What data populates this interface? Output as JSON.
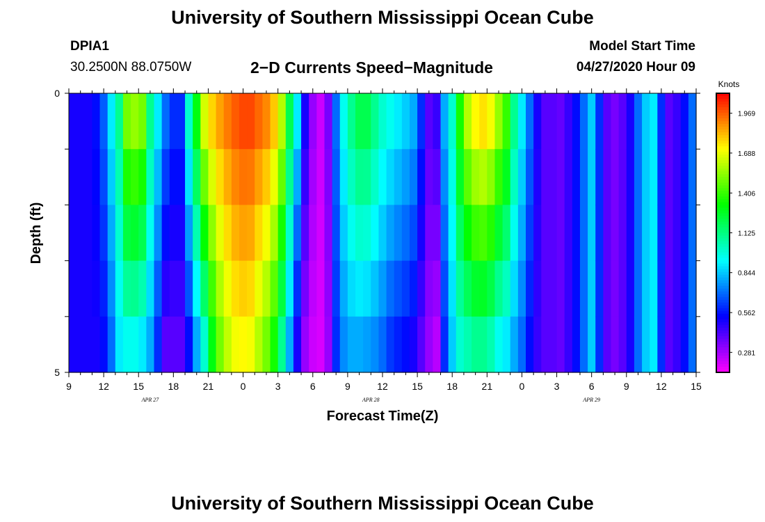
{
  "header": {
    "title": "University of Southern Mississippi Ocean Cube",
    "station_id": "DPIA1",
    "coordinates": "30.2500N 88.0750W",
    "subtitle": "2−D Currents Speed−Magnitude",
    "model_start_label": "Model Start Time",
    "model_start_value": "04/27/2020 Hour 09"
  },
  "footer": {
    "title": "University of Southern Mississippi Ocean Cube"
  },
  "chart_data": {
    "type": "heatmap",
    "title": "2−D Currents Speed−Magnitude",
    "xlabel": "Forecast Time(Z)",
    "ylabel": "Depth (ft)",
    "x_tick_labels": [
      "9",
      "12",
      "15",
      "18",
      "21",
      "0",
      "3",
      "6",
      "9",
      "12",
      "15",
      "18",
      "21",
      "0",
      "3",
      "6",
      "9",
      "12",
      "15"
    ],
    "date_labels": [
      {
        "label": "APR 27",
        "hour_index": 7
      },
      {
        "label": "APR 28",
        "hour_index": 26
      },
      {
        "label": "APR 29",
        "hour_index": 45
      }
    ],
    "y_tick_labels": [
      "0",
      "5"
    ],
    "ylim": [
      0,
      5
    ],
    "x_hours": 54,
    "depth_layers": 5,
    "surface_speeds": [
      0.5,
      0.5,
      0.5,
      0.55,
      0.68,
      0.9,
      1.1,
      1.5,
      1.55,
      1.5,
      1.1,
      0.9,
      0.7,
      0.6,
      0.6,
      1.0,
      1.3,
      1.65,
      1.78,
      1.86,
      1.92,
      1.97,
      2.0,
      2.0,
      1.95,
      1.9,
      1.8,
      1.6,
      1.2,
      0.9,
      0.5,
      0.3,
      0.22,
      0.35,
      0.7,
      0.95,
      1.1,
      1.2,
      1.2,
      1.1,
      1.0,
      0.95,
      0.9,
      0.85,
      0.8,
      0.6,
      0.4,
      0.45,
      0.8,
      1.0,
      1.35,
      1.6,
      1.72,
      1.76,
      1.7,
      1.55,
      1.4,
      1.1,
      0.9,
      0.7,
      0.5,
      0.4,
      0.4,
      0.38,
      0.45,
      0.55,
      0.7,
      0.85,
      0.6,
      0.4,
      0.35,
      0.4,
      0.5,
      0.7,
      0.85,
      0.9,
      0.6,
      0.4,
      0.45,
      0.55,
      0.7
    ],
    "bottom_speeds": [
      0.5,
      0.5,
      0.5,
      0.5,
      0.55,
      0.7,
      0.9,
      0.95,
      0.95,
      0.9,
      0.8,
      0.6,
      0.4,
      0.4,
      0.4,
      0.55,
      0.8,
      1.0,
      1.3,
      1.5,
      1.62,
      1.7,
      1.72,
      1.7,
      1.6,
      1.5,
      1.35,
      1.1,
      0.8,
      0.5,
      0.3,
      0.22,
      0.2,
      0.3,
      0.6,
      0.75,
      0.8,
      0.8,
      0.78,
      0.75,
      0.7,
      0.62,
      0.58,
      0.55,
      0.5,
      0.4,
      0.3,
      0.25,
      0.6,
      0.85,
      1.0,
      1.05,
      1.1,
      1.1,
      1.05,
      0.95,
      0.9,
      0.8,
      0.7,
      0.55,
      0.45,
      0.4,
      0.4,
      0.38,
      0.45,
      0.55,
      0.7,
      0.85,
      0.6,
      0.4,
      0.35,
      0.4,
      0.5,
      0.7,
      0.85,
      0.9,
      0.6,
      0.4,
      0.45,
      0.55,
      0.7
    ],
    "colorbar": {
      "unit": "Knots",
      "min": 0.14,
      "max": 2.11,
      "tick_labels": [
        "1.969",
        "1.688",
        "1.406",
        "1.125",
        "0.844",
        "0.562",
        "0.281"
      ],
      "tick_values": [
        1.969,
        1.688,
        1.406,
        1.125,
        0.844,
        0.562,
        0.281
      ]
    }
  }
}
